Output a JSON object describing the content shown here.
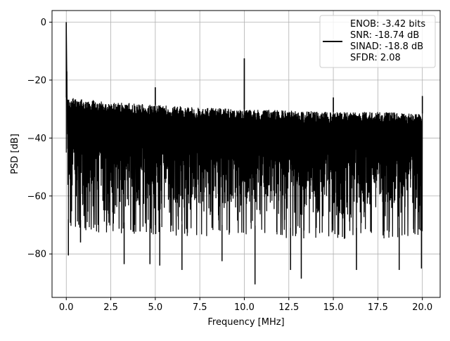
{
  "chart_data": {
    "type": "line",
    "title": "",
    "xlabel": "Frequency [MHz]",
    "ylabel": "PSD [dB]",
    "xlim": [
      -0.8,
      21.0
    ],
    "ylim": [
      -95,
      4
    ],
    "xticks": [
      0.0,
      2.5,
      5.0,
      7.5,
      10.0,
      12.5,
      15.0,
      17.5,
      20.0
    ],
    "xtick_labels": [
      "0.0",
      "2.5",
      "5.0",
      "7.5",
      "10.0",
      "12.5",
      "15.0",
      "17.5",
      "20.0"
    ],
    "yticks": [
      0,
      -20,
      -40,
      -60,
      -80
    ],
    "ytick_labels": [
      "0",
      "−20",
      "−40",
      "−60",
      "−80"
    ],
    "grid": true,
    "legend_position": "top-right",
    "line_color": "#000000",
    "series": [
      {
        "name": "ENOB: -3.42 bits\nSNR: -18.74 dB\nSINAD: -18.8 dB\nSFDR: 2.08",
        "legend_lines": [
          "ENOB: -3.42 bits",
          "SNR: -18.74 dB",
          "SINAD: -18.8 dB",
          "SFDR: 2.08"
        ],
        "description": "dense noise-floor power spectral density",
        "noise_upper_envelope": [
          [
            0.05,
            -26
          ],
          [
            2.5,
            -27.5
          ],
          [
            5.0,
            -28.5
          ],
          [
            7.5,
            -29.5
          ],
          [
            10.0,
            -30
          ],
          [
            12.5,
            -30.5
          ],
          [
            15.0,
            -31
          ],
          [
            17.5,
            -31
          ],
          [
            20.0,
            -31.5
          ]
        ],
        "noise_lower_envelope": [
          [
            0.05,
            -68
          ],
          [
            2.5,
            -69
          ],
          [
            5.0,
            -69.5
          ],
          [
            7.5,
            -70
          ],
          [
            10.0,
            -70
          ],
          [
            12.5,
            -71
          ],
          [
            15.0,
            -71
          ],
          [
            17.5,
            -71
          ],
          [
            20.0,
            -71
          ]
        ],
        "peaks": [
          {
            "x": 0.0,
            "y": 0.0
          },
          {
            "x": 0.03,
            "y": -17
          },
          {
            "x": 5.0,
            "y": -22.5
          },
          {
            "x": 10.0,
            "y": -12.5
          },
          {
            "x": 15.0,
            "y": -26
          },
          {
            "x": 20.0,
            "y": -25.5
          }
        ],
        "dips": [
          {
            "x": 0.12,
            "y": -80.5
          },
          {
            "x": 0.8,
            "y": -76
          },
          {
            "x": 3.25,
            "y": -83.5
          },
          {
            "x": 4.7,
            "y": -83.5
          },
          {
            "x": 5.25,
            "y": -84
          },
          {
            "x": 6.5,
            "y": -85.5
          },
          {
            "x": 8.75,
            "y": -82.5
          },
          {
            "x": 10.6,
            "y": -90.5
          },
          {
            "x": 12.6,
            "y": -85.5
          },
          {
            "x": 13.2,
            "y": -88.5
          },
          {
            "x": 16.3,
            "y": -85.5
          },
          {
            "x": 18.7,
            "y": -85.5
          },
          {
            "x": 19.95,
            "y": -85
          }
        ]
      }
    ]
  }
}
